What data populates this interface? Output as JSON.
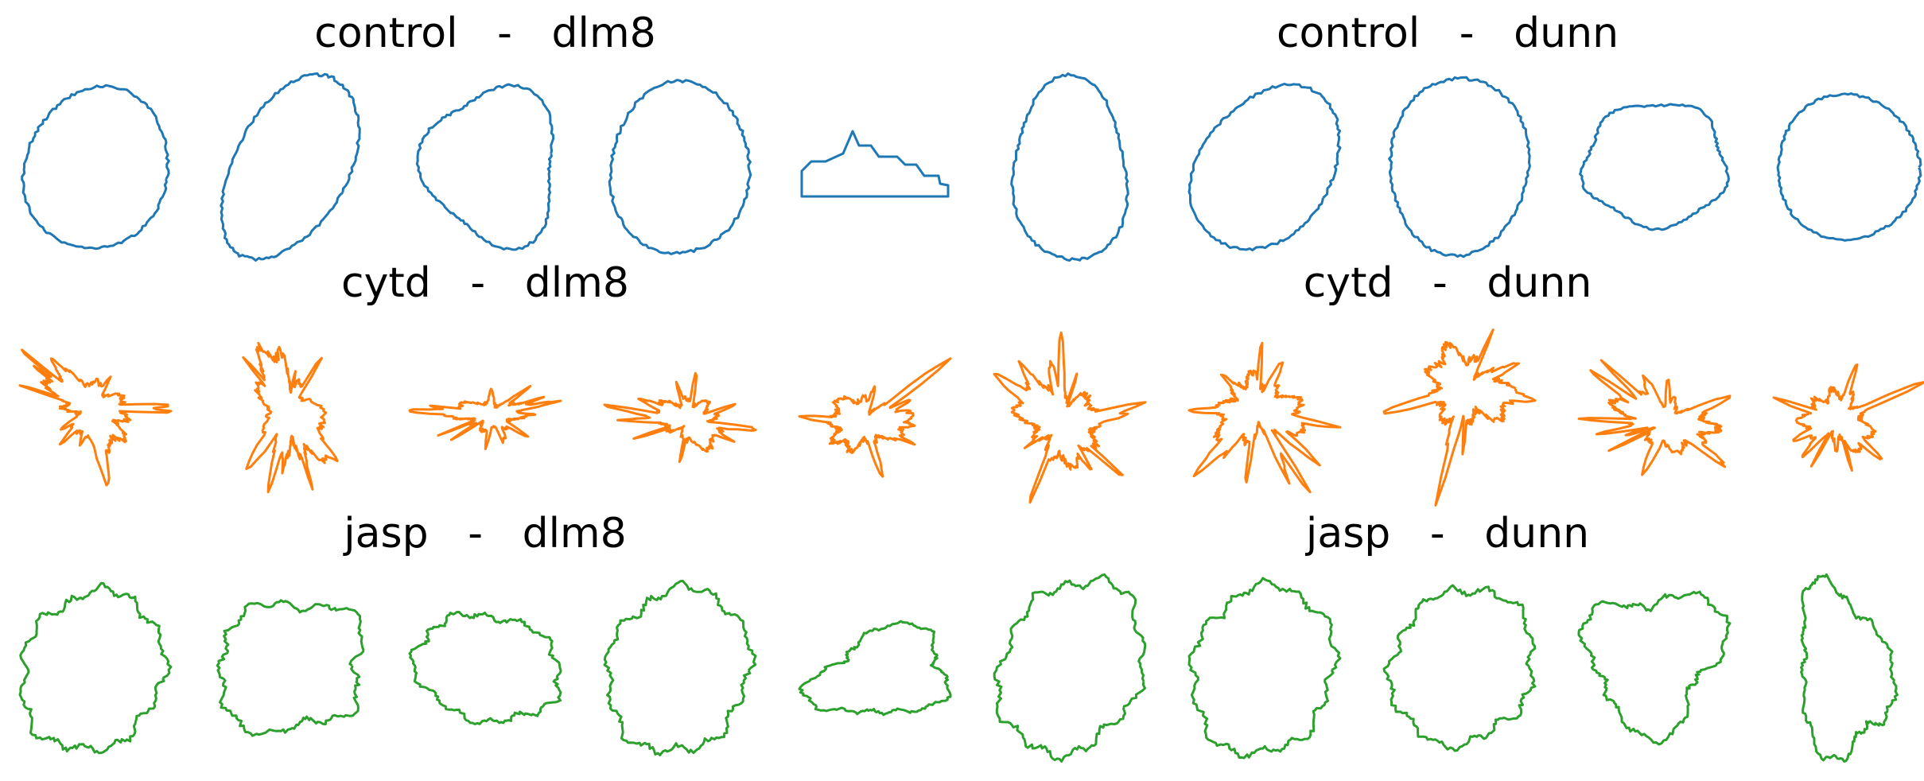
{
  "figure": {
    "groups": [
      {
        "title": "control   -   dlm8",
        "color": "#1f77b4"
      },
      {
        "title": "control   -   dunn",
        "color": "#1f77b4"
      },
      {
        "title": "cytd   -   dlm8",
        "color": "#ff7f0e"
      },
      {
        "title": "cytd   -   dunn",
        "color": "#ff7f0e"
      },
      {
        "title": "jasp   -   dlm8",
        "color": "#2ca02c"
      },
      {
        "title": "jasp   -   dunn",
        "color": "#2ca02c"
      }
    ],
    "rows": [
      {
        "condition": "control",
        "color": "#1f77b4",
        "style": "smooth"
      },
      {
        "condition": "cytd",
        "color": "#ff7f0e",
        "style": "spiky"
      },
      {
        "condition": "jasp",
        "color": "#2ca02c",
        "style": "wavy"
      }
    ],
    "cells_per_row": 10
  }
}
